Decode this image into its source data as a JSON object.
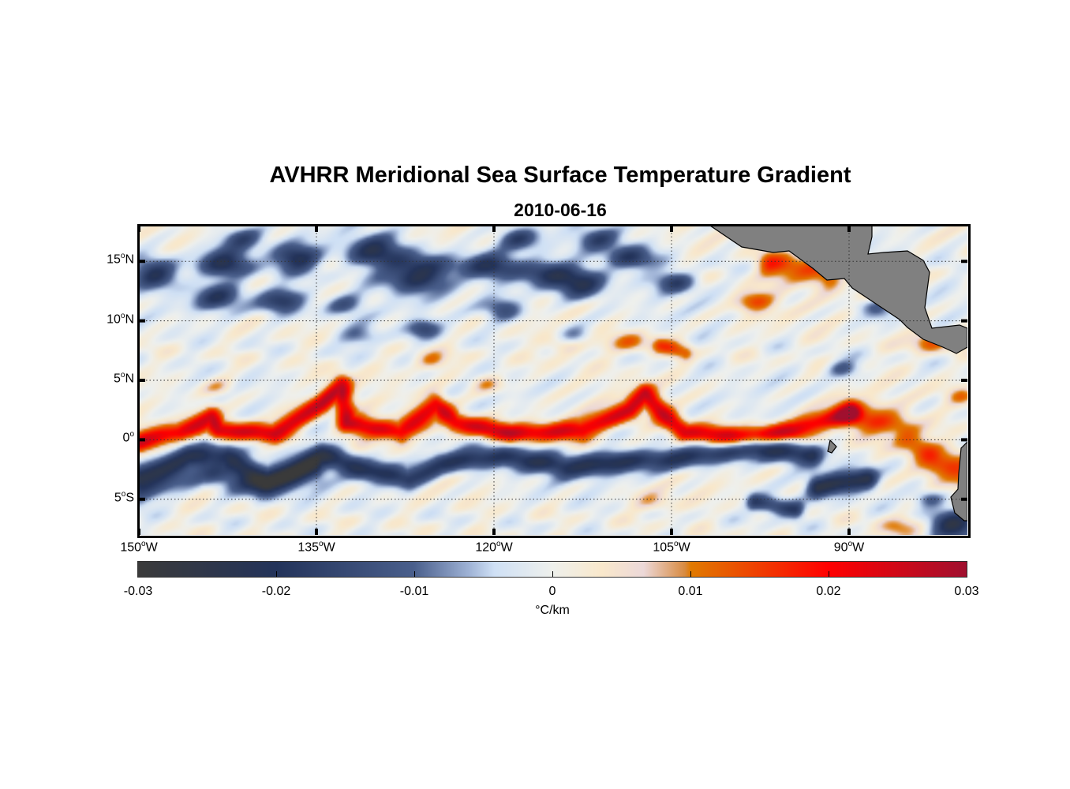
{
  "title": "AVHRR Meridional Sea Surface Temperature Gradient",
  "subtitle": "2010-06-16",
  "chart_data": {
    "type": "heatmap",
    "title": "AVHRR Meridional Sea Surface Temperature Gradient",
    "subtitle": "2010-06-16",
    "lon_range": [
      -150,
      -80
    ],
    "lat_range": [
      -8,
      18
    ],
    "x_ticks": [
      {
        "value": -150,
        "label": "150",
        "suffix": "W"
      },
      {
        "value": -135,
        "label": "135",
        "suffix": "W"
      },
      {
        "value": -120,
        "label": "120",
        "suffix": "W"
      },
      {
        "value": -105,
        "label": "105",
        "suffix": "W"
      },
      {
        "value": -90,
        "label": "90",
        "suffix": "W"
      }
    ],
    "y_ticks": [
      {
        "value": 15,
        "label": "15",
        "suffix": "N"
      },
      {
        "value": 10,
        "label": "10",
        "suffix": "N"
      },
      {
        "value": 5,
        "label": "5",
        "suffix": "N"
      },
      {
        "value": 0,
        "label": "0",
        "suffix": ""
      },
      {
        "value": -5,
        "label": "5",
        "suffix": "S"
      }
    ],
    "grid": "dotted",
    "land_color": "#808080",
    "colorbar": {
      "range": [
        -0.03,
        0.03
      ],
      "ticks": [
        "-0.03",
        "-0.02",
        "-0.01",
        "0",
        "0.01",
        "0.02",
        "0.03"
      ],
      "label": "°C/km",
      "placement": "bottom"
    }
  }
}
